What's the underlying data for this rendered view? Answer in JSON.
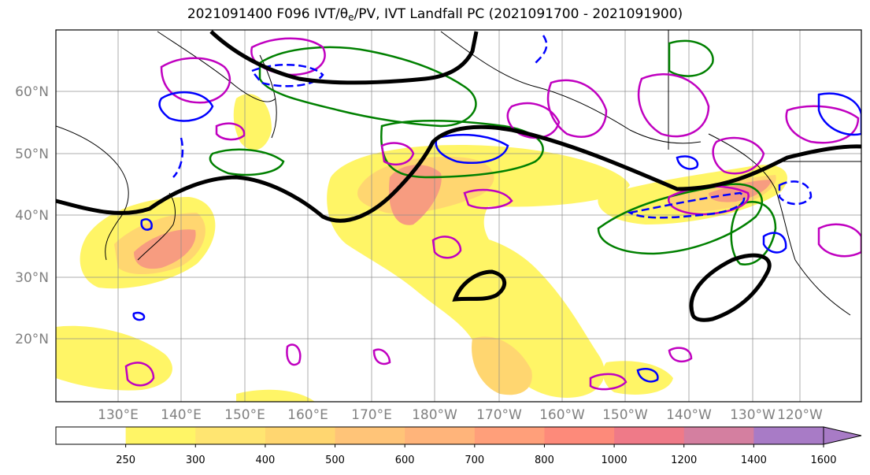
{
  "title": {
    "prefix": "2021091400 F096 IVT/",
    "theta": "θ",
    "sub": "e",
    "suffix": "/PV, IVT Landfall PC (2021091700 - 2021091900)"
  },
  "lat_labels": [
    "60°N",
    "50°N",
    "40°N",
    "30°N",
    "20°N"
  ],
  "lon_labels": [
    "130°E",
    "140°E",
    "150°E",
    "160°E",
    "170°E",
    "180°W",
    "170°W",
    "160°W",
    "150°W",
    "140°W",
    "130°W",
    "120°W"
  ],
  "colorbar": {
    "ticks": [
      "250",
      "300",
      "400",
      "500",
      "600",
      "700",
      "800",
      "1000",
      "1200",
      "1400",
      "1600"
    ],
    "colors": [
      "#ffffff",
      "#fff566",
      "#ffe571",
      "#ffd670",
      "#ffc478",
      "#ffb47a",
      "#ff9f7a",
      "#fd8a7a",
      "#ef7a88",
      "#d47fa0",
      "#a87bc6"
    ]
  },
  "chart_data": {
    "type": "map",
    "field": "IVT",
    "lat_range": [
      10,
      70
    ],
    "lon_range": [
      120,
      250
    ],
    "grid": true,
    "contour_colors": {
      "ivt_outline": "#000000",
      "theta_e_pos": "#0000ff",
      "pv_pos": "#c000c0",
      "pc_pos": "#008000"
    }
  }
}
